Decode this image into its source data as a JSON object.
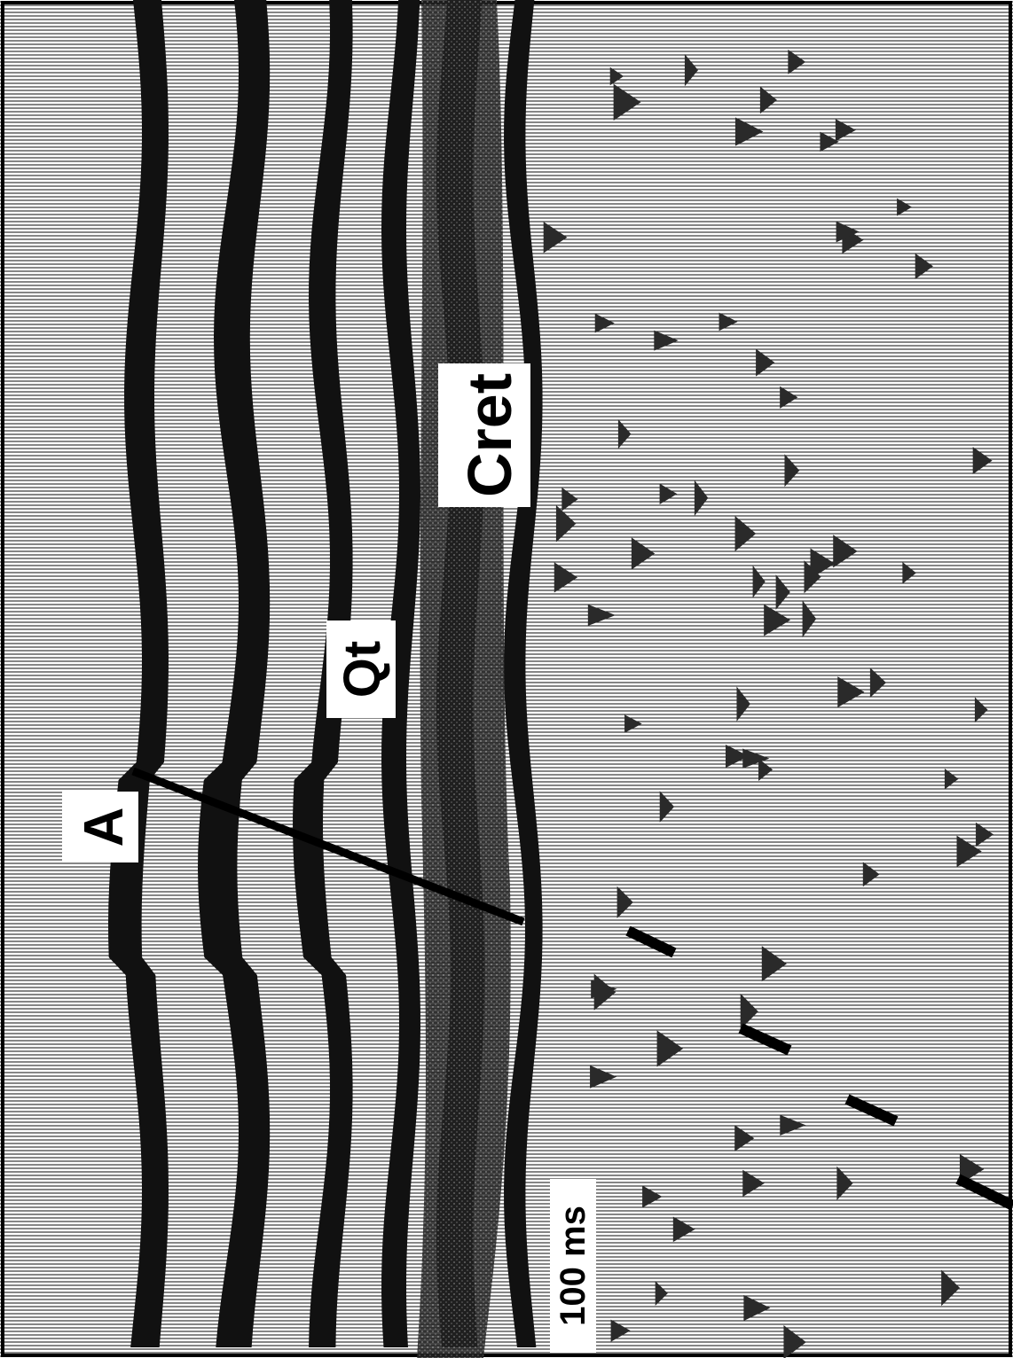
{
  "labels": {
    "fault": "A",
    "horizon_upper": "Qt",
    "horizon_lower": "Cret",
    "scale": "100 ms"
  },
  "colors": {
    "ink": "#000000",
    "paper": "#ffffff",
    "horizon_band": "#111111",
    "noise": "#2a2a2a"
  },
  "icons": {
    "fault_marker": "fault-line",
    "dashed_reflector": "dashed-line"
  }
}
